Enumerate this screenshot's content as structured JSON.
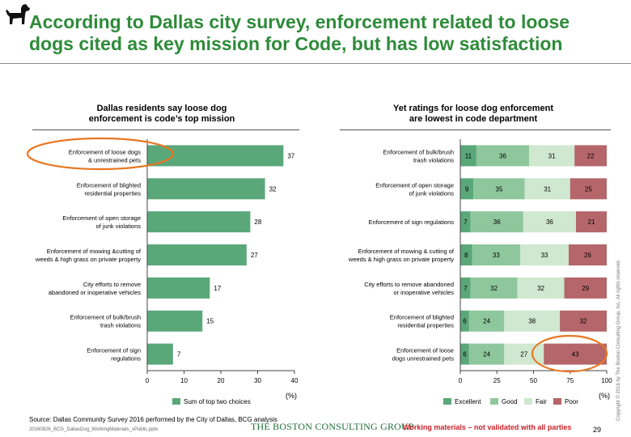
{
  "title_line1": "According to Dallas city survey, enforcement related to loose",
  "title_line2": "dogs cited as key mission for Code, but has low satisfaction",
  "colors": {
    "title": "#2e8b3a",
    "bar": "#5aa77a",
    "excellent": "#5aa77a",
    "good": "#8fc79c",
    "fair": "#cfe8cf",
    "poor": "#b5666a",
    "highlight": "#e87722"
  },
  "chart_data": [
    {
      "type": "bar",
      "orientation": "horizontal",
      "title_line1": "Dallas residents say loose dog",
      "title_line2": "enforcement is code’s top mission",
      "categories": [
        [
          "Enforcement of loose dogs",
          "& unrestrained pets"
        ],
        [
          "Enforcement of blighted",
          "residential properties"
        ],
        [
          "Enforcement of open storage",
          "of junk violations"
        ],
        [
          "Enforcement of mowing &cutting of",
          "weeds & high grass on private property"
        ],
        [
          "City efforts to remove",
          "abandoned or inoperative vehicles"
        ],
        [
          "Enforcement of bulk/brush",
          "trash violations"
        ],
        [
          "Enforcement of sign",
          "regulations"
        ]
      ],
      "series": [
        {
          "name": "Sum of top two choices",
          "values": [
            37,
            32,
            28,
            27,
            17,
            15,
            7
          ]
        }
      ],
      "xlim": [
        0,
        40
      ],
      "xticks": [
        0,
        10,
        20,
        30,
        40
      ],
      "unit": "(%)",
      "legend": "bottom"
    },
    {
      "type": "bar",
      "orientation": "horizontal",
      "stacked": true,
      "title_line1": "Yet ratings for loose dog enforcement",
      "title_line2": "are lowest in code department",
      "categories": [
        [
          "Enforcement of bulk/brush",
          "trash violations"
        ],
        [
          "Enforcement of open storage",
          "of junk violations"
        ],
        [
          "Enforcement of sign regulations"
        ],
        [
          "Enforcement of mowing & cutting of",
          "weeds & high grass on private property"
        ],
        [
          "City efforts to remove abandoned",
          "or inoperative vehicles"
        ],
        [
          "Enforcement of blighted",
          "residential properties"
        ],
        [
          "Enforcement of loose",
          "dogs unrestrained pets"
        ]
      ],
      "series": [
        {
          "name": "Excellent",
          "values": [
            11,
            9,
            7,
            8,
            7,
            6,
            6
          ]
        },
        {
          "name": "Good",
          "values": [
            36,
            35,
            36,
            33,
            32,
            24,
            24
          ]
        },
        {
          "name": "Fair",
          "values": [
            31,
            31,
            36,
            33,
            32,
            38,
            27
          ]
        },
        {
          "name": "Poor",
          "values": [
            22,
            25,
            21,
            26,
            29,
            32,
            43
          ]
        }
      ],
      "xlim": [
        0,
        100
      ],
      "xticks": [
        0,
        25,
        50,
        75,
        100
      ],
      "unit": "(%)",
      "legend": "bottom"
    }
  ],
  "footer": {
    "source": "Source: Dallas Community Survey 2016 performed by the City of Dallas, BCG analysis",
    "filename": "20160826_BCG_DallasDog_WorkingMaterials_vPublic.pptx",
    "company": "THE BOSTON CONSULTING GROUP",
    "disclaimer": "Working materials – not validated with all parties",
    "page_number": "29",
    "copyright": "Copyright © 2016 by The Boston Consulting Group, Inc. All rights reserved."
  }
}
